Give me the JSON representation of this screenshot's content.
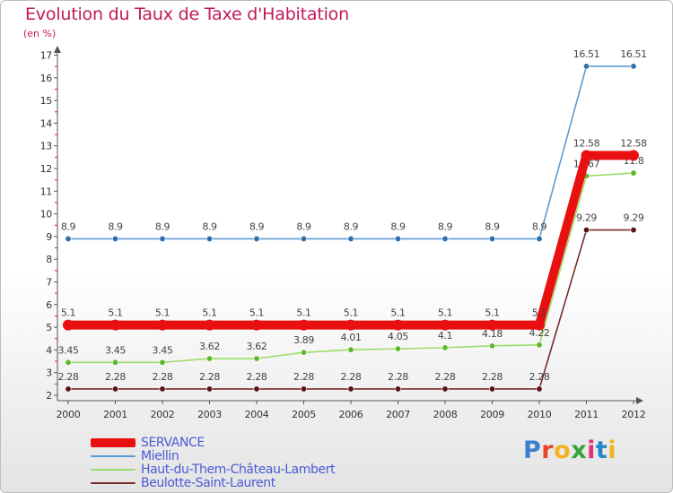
{
  "header": {
    "title": "Evolution du Taux de Taxe d'Habitation",
    "subtitle": "(en %)"
  },
  "logo": {
    "letters": [
      "P",
      "r",
      "o",
      "x",
      "i",
      "t",
      "i"
    ],
    "colors": [
      "#3a7fd0",
      "#e8462a",
      "#f2b320",
      "#3aa23a",
      "#e0307a",
      "#1e88c8",
      "#f2b320"
    ]
  },
  "chart_data": {
    "type": "line",
    "x": [
      "2000",
      "2001",
      "2002",
      "2003",
      "2004",
      "2005",
      "2006",
      "2007",
      "2008",
      "2009",
      "2010",
      "2011",
      "2012"
    ],
    "ylim": [
      2,
      17
    ],
    "yticks": [
      "2",
      "3",
      "4",
      "5",
      "6",
      "7",
      "8",
      "9",
      "10",
      "11",
      "12",
      "13",
      "14",
      "15",
      "16",
      "17"
    ],
    "grid": false,
    "legend_position": "bottom-left",
    "series": [
      {
        "name": "Miellin",
        "color": "#5b9bd5",
        "marker": "#2f6fa8",
        "values": [
          8.9,
          8.9,
          8.9,
          8.9,
          8.9,
          8.9,
          8.9,
          8.9,
          8.9,
          8.9,
          8.9,
          16.51,
          16.51
        ],
        "labels": [
          "8.9",
          "8.9",
          "8.9",
          "8.9",
          "8.9",
          "8.9",
          "8.9",
          "8.9",
          "8.9",
          "8.9",
          "8.9",
          "16.51",
          "16.51"
        ]
      },
      {
        "name": "Haut-du-Them-Château-Lambert",
        "color": "#9ddc6a",
        "marker": "#5cb82a",
        "values": [
          3.45,
          3.45,
          3.45,
          3.62,
          3.62,
          3.89,
          4.01,
          4.05,
          4.1,
          4.18,
          4.22,
          11.67,
          11.8
        ],
        "labels": [
          "3.45",
          "3.45",
          "3.45",
          "3.62",
          "3.62",
          "3.89",
          "4.01",
          "4.05",
          "4.1",
          "4.18",
          "4.22",
          "11.67",
          "11.8"
        ]
      },
      {
        "name": "Beulotte-Saint-Laurent",
        "color": "#7a2b2b",
        "marker": "#5a1414",
        "values": [
          2.28,
          2.28,
          2.28,
          2.28,
          2.28,
          2.28,
          2.28,
          2.28,
          2.28,
          2.28,
          2.28,
          9.29,
          9.29
        ],
        "labels": [
          "2.28",
          "2.28",
          "2.28",
          "2.28",
          "2.28",
          "2.28",
          "2.28",
          "2.28",
          "2.28",
          "2.28",
          "2.28",
          "9.29",
          "9.29"
        ]
      },
      {
        "name": "SERVANCE",
        "color": "#e81010",
        "marker": "#e81010",
        "values": [
          5.1,
          5.1,
          5.1,
          5.1,
          5.1,
          5.1,
          5.1,
          5.1,
          5.1,
          5.1,
          5.1,
          12.58,
          12.58
        ],
        "labels": [
          "5.1",
          "5.1",
          "5.1",
          "5.1",
          "5.1",
          "5.1",
          "5.1",
          "5.1",
          "5.1",
          "5.1",
          "5.1",
          "12.58",
          "12.58"
        ]
      }
    ]
  },
  "legend": {
    "items": [
      {
        "label": "SERVANCE",
        "color": "#e81010",
        "thickness": 10
      },
      {
        "label": "Miellin",
        "color": "#5b9bd5",
        "thickness": 2
      },
      {
        "label": "Haut-du-Them-Château-Lambert",
        "color": "#9ddc6a",
        "thickness": 2
      },
      {
        "label": "Beulotte-Saint-Laurent",
        "color": "#7a2b2b",
        "thickness": 2
      }
    ]
  }
}
